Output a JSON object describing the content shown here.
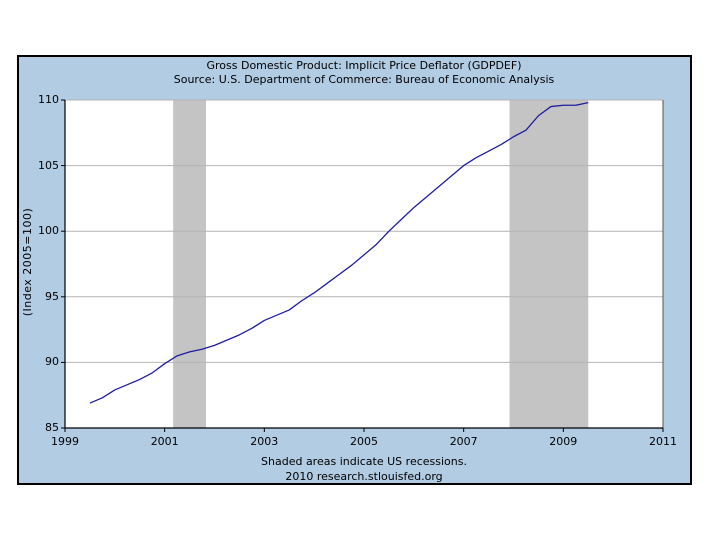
{
  "header": {
    "title": "Gross Domestic Product: Implicit Price Deflator (GDPDEF)",
    "subtitle": "Source: U.S. Department of Commerce: Bureau of Economic Analysis"
  },
  "footer": {
    "recession_note": "Shaded areas indicate US recessions.",
    "source_note": "2010 research.stlouisfed.org"
  },
  "colors": {
    "panel_background": "#b2cce4",
    "plot_background": "#ffffff",
    "panel_border": "#000000",
    "gridline": "#b4b4b4",
    "recession_band": "#c4c4c4",
    "line": "#1d1d9e",
    "text": "#000000"
  },
  "chart_data": {
    "type": "line",
    "title": "Gross Domestic Product: Implicit Price Deflator (GDPDEF)",
    "subtitle": "Source: U.S. Department of Commerce: Bureau of Economic Analysis",
    "xlabel": "",
    "ylabel": "(Index 2005=100)",
    "xlim": [
      1999,
      2011
    ],
    "ylim": [
      85,
      110
    ],
    "x_ticks": [
      "1999",
      "2001",
      "2003",
      "2005",
      "2007",
      "2009",
      "2011"
    ],
    "y_ticks": [
      "110",
      "105",
      "100",
      "95",
      "90",
      "85"
    ],
    "grid": "horizontal",
    "legend": "none",
    "recession_bands": [
      [
        2001.17,
        2001.83
      ],
      [
        2007.92,
        2009.5
      ]
    ],
    "series": [
      {
        "name": "GDPDEF",
        "frequency": "quarterly",
        "points": [
          [
            1999.5,
            86.9
          ],
          [
            1999.75,
            87.3
          ],
          [
            2000.0,
            87.9
          ],
          [
            2000.25,
            88.3
          ],
          [
            2000.5,
            88.7
          ],
          [
            2000.75,
            89.2
          ],
          [
            2001.0,
            89.9
          ],
          [
            2001.25,
            90.5
          ],
          [
            2001.5,
            90.8
          ],
          [
            2001.75,
            91.0
          ],
          [
            2002.0,
            91.3
          ],
          [
            2002.25,
            91.7
          ],
          [
            2002.5,
            92.1
          ],
          [
            2002.75,
            92.6
          ],
          [
            2003.0,
            93.2
          ],
          [
            2003.25,
            93.6
          ],
          [
            2003.5,
            94.0
          ],
          [
            2003.75,
            94.7
          ],
          [
            2004.0,
            95.3
          ],
          [
            2004.25,
            96.0
          ],
          [
            2004.5,
            96.7
          ],
          [
            2004.75,
            97.4
          ],
          [
            2005.0,
            98.2
          ],
          [
            2005.25,
            99.0
          ],
          [
            2005.5,
            100.0
          ],
          [
            2005.75,
            100.9
          ],
          [
            2006.0,
            101.8
          ],
          [
            2006.25,
            102.6
          ],
          [
            2006.5,
            103.4
          ],
          [
            2006.75,
            104.2
          ],
          [
            2007.0,
            105.0
          ],
          [
            2007.25,
            105.6
          ],
          [
            2007.5,
            106.1
          ],
          [
            2007.75,
            106.6
          ],
          [
            2008.0,
            107.2
          ],
          [
            2008.25,
            107.7
          ],
          [
            2008.5,
            108.8
          ],
          [
            2008.75,
            109.5
          ],
          [
            2009.0,
            109.6
          ],
          [
            2009.25,
            109.6
          ],
          [
            2009.5,
            109.8
          ]
        ]
      }
    ]
  }
}
